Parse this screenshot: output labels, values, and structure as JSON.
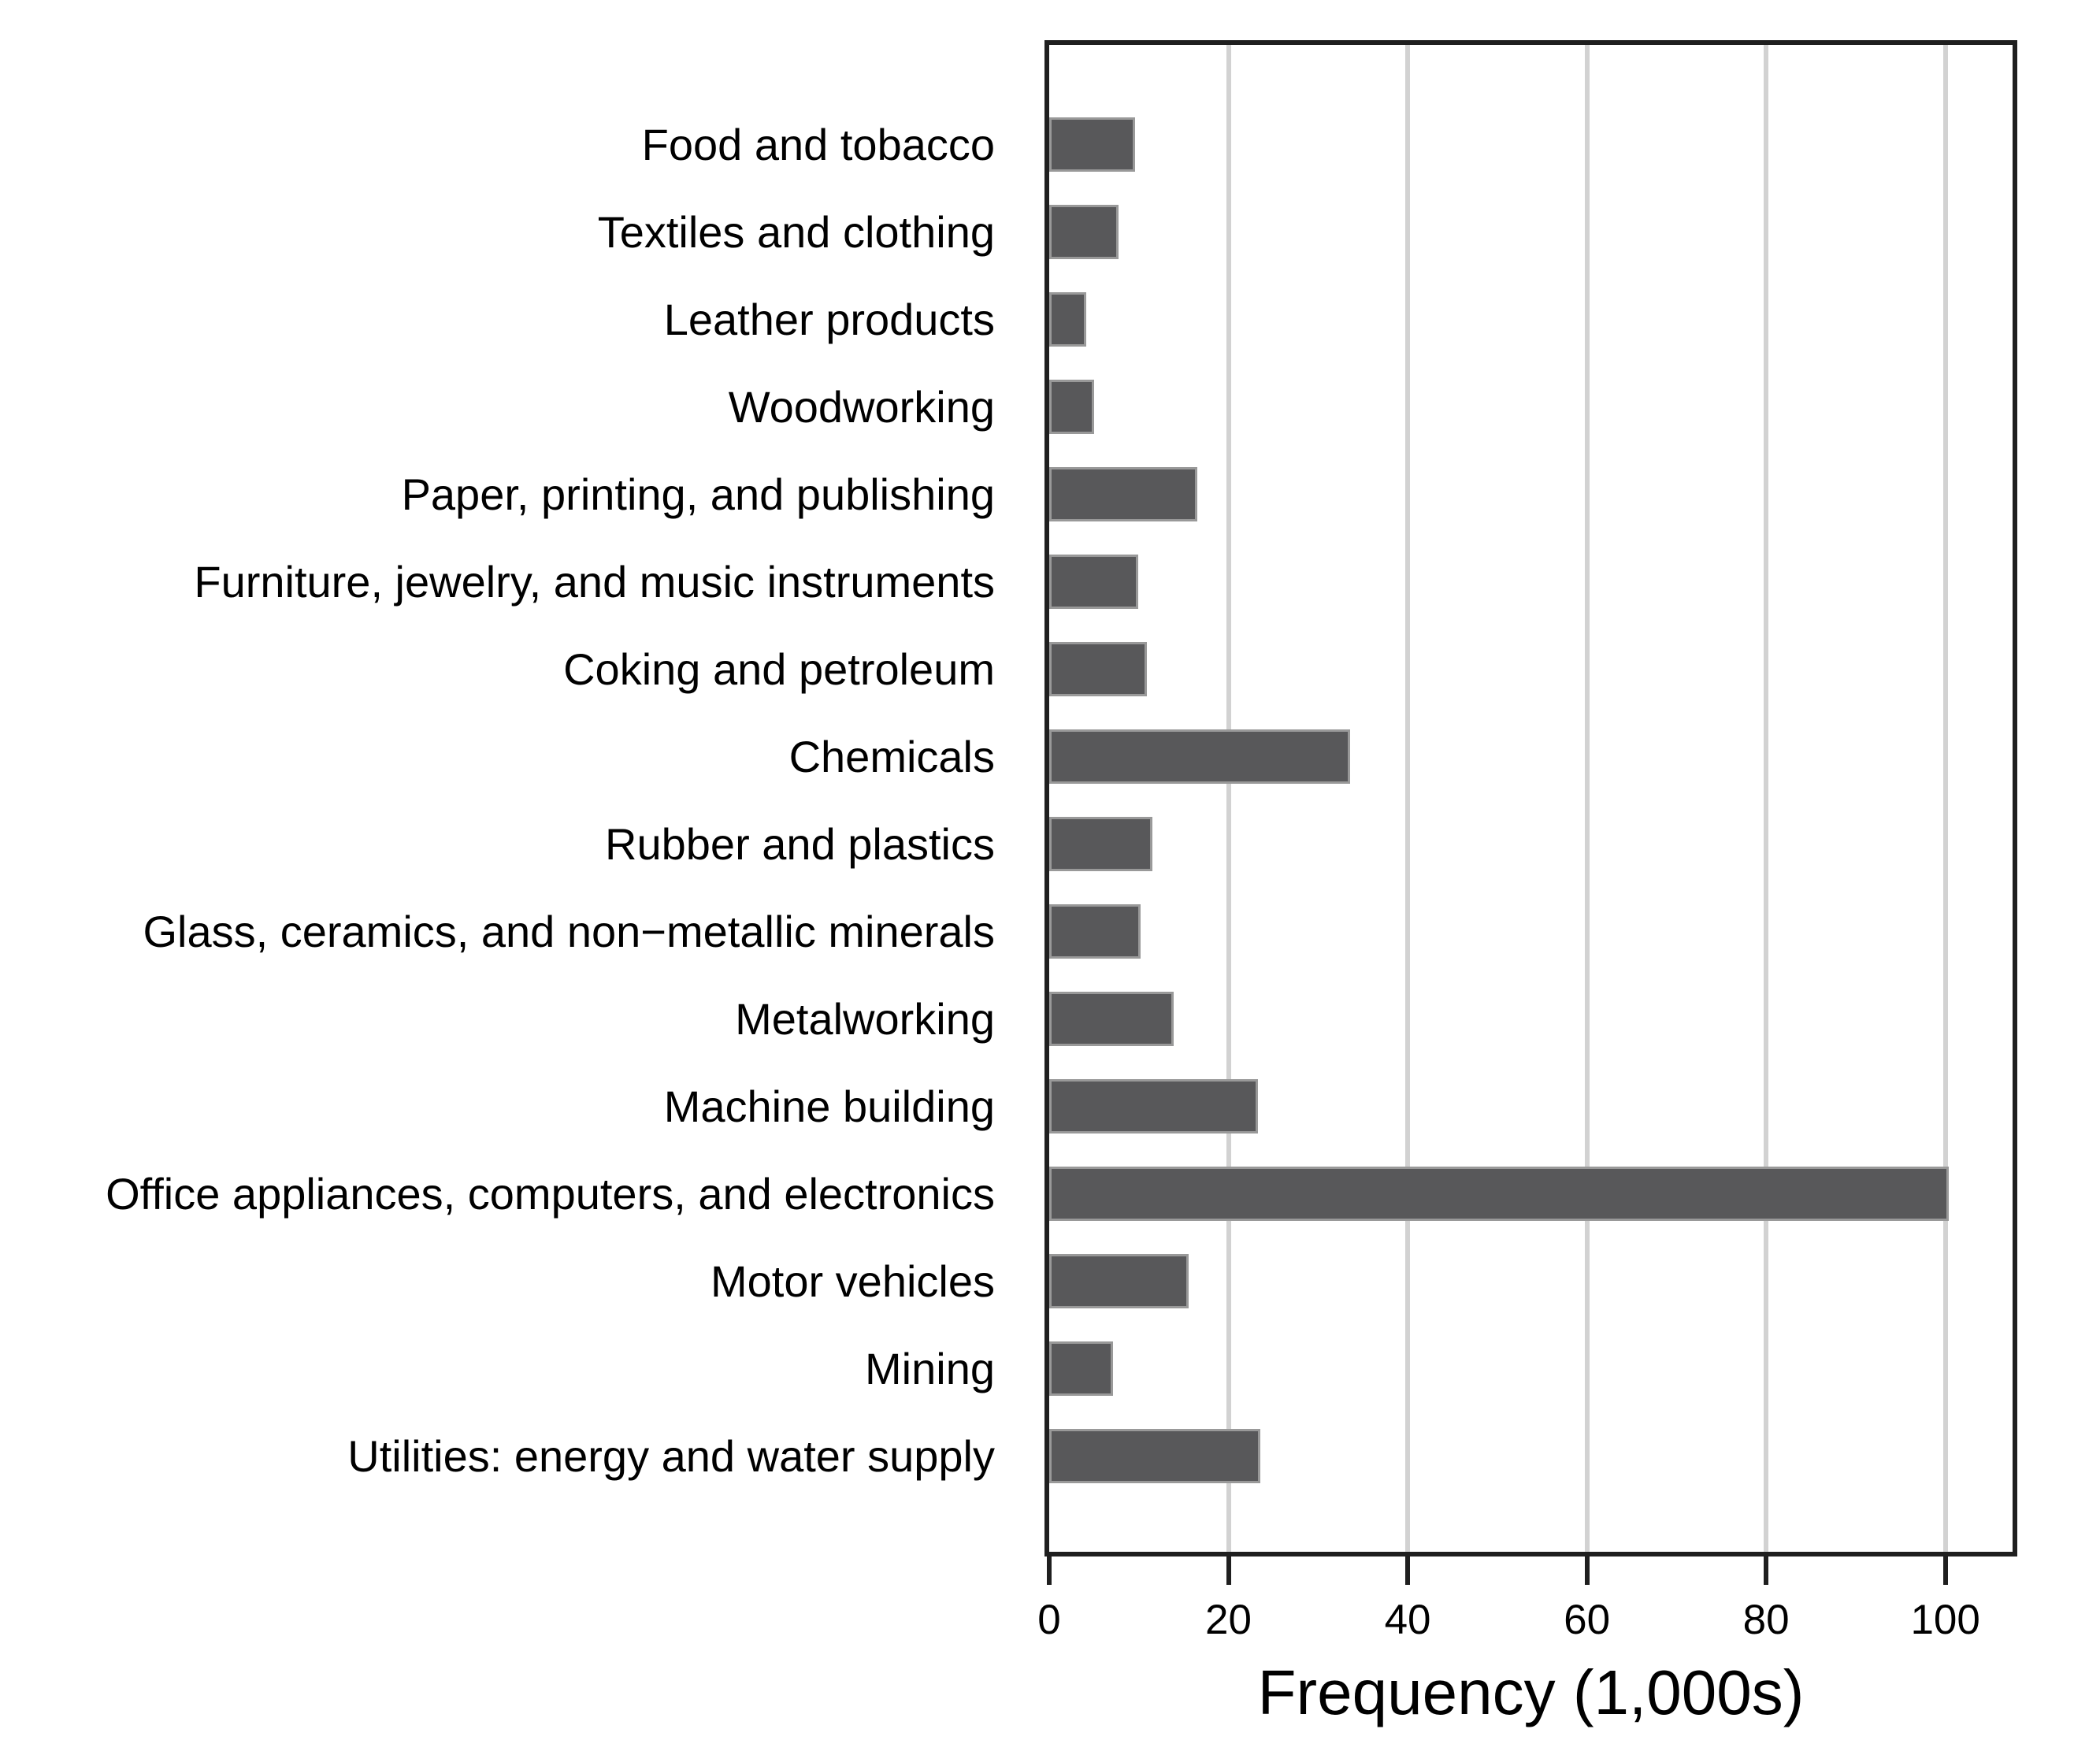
{
  "figure": {
    "background": "#ffffff"
  },
  "chart_data": {
    "type": "bar",
    "orientation": "horizontal",
    "title": "",
    "xlabel": "Frequency (1,000s)",
    "ylabel": "",
    "categories": [
      "Food and tobacco",
      "Textiles and clothing",
      "Leather products",
      "Woodworking",
      "Paper, printing, and publishing",
      "Furniture, jewelry, and music instruments",
      "Coking and petroleum",
      "Chemicals",
      "Rubber and plastics",
      "Glass, ceramics, and non−metallic minerals",
      "Metalworking",
      "Machine building",
      "Office appliances, computers, and electronics",
      "Motor vehicles",
      "Mining",
      "Utilities: energy and water supply"
    ],
    "values": [
      9.6,
      7.7,
      4.1,
      5.0,
      16.5,
      9.9,
      10.9,
      33.6,
      11.5,
      10.2,
      13.9,
      23.3,
      100.4,
      15.6,
      7.1,
      23.6
    ],
    "x_ticks": [
      0,
      20,
      40,
      60,
      80,
      100
    ],
    "xlim": [
      0,
      107.5
    ],
    "grid": "vertical-gridlines-at-x-ticks",
    "legend_position": "none",
    "bar_color": "#58585A",
    "bar_outline_color": "#999999",
    "gridline_color": "#d2d2d2",
    "frame_color": "#1f1f1f",
    "text_color": "#000000"
  }
}
